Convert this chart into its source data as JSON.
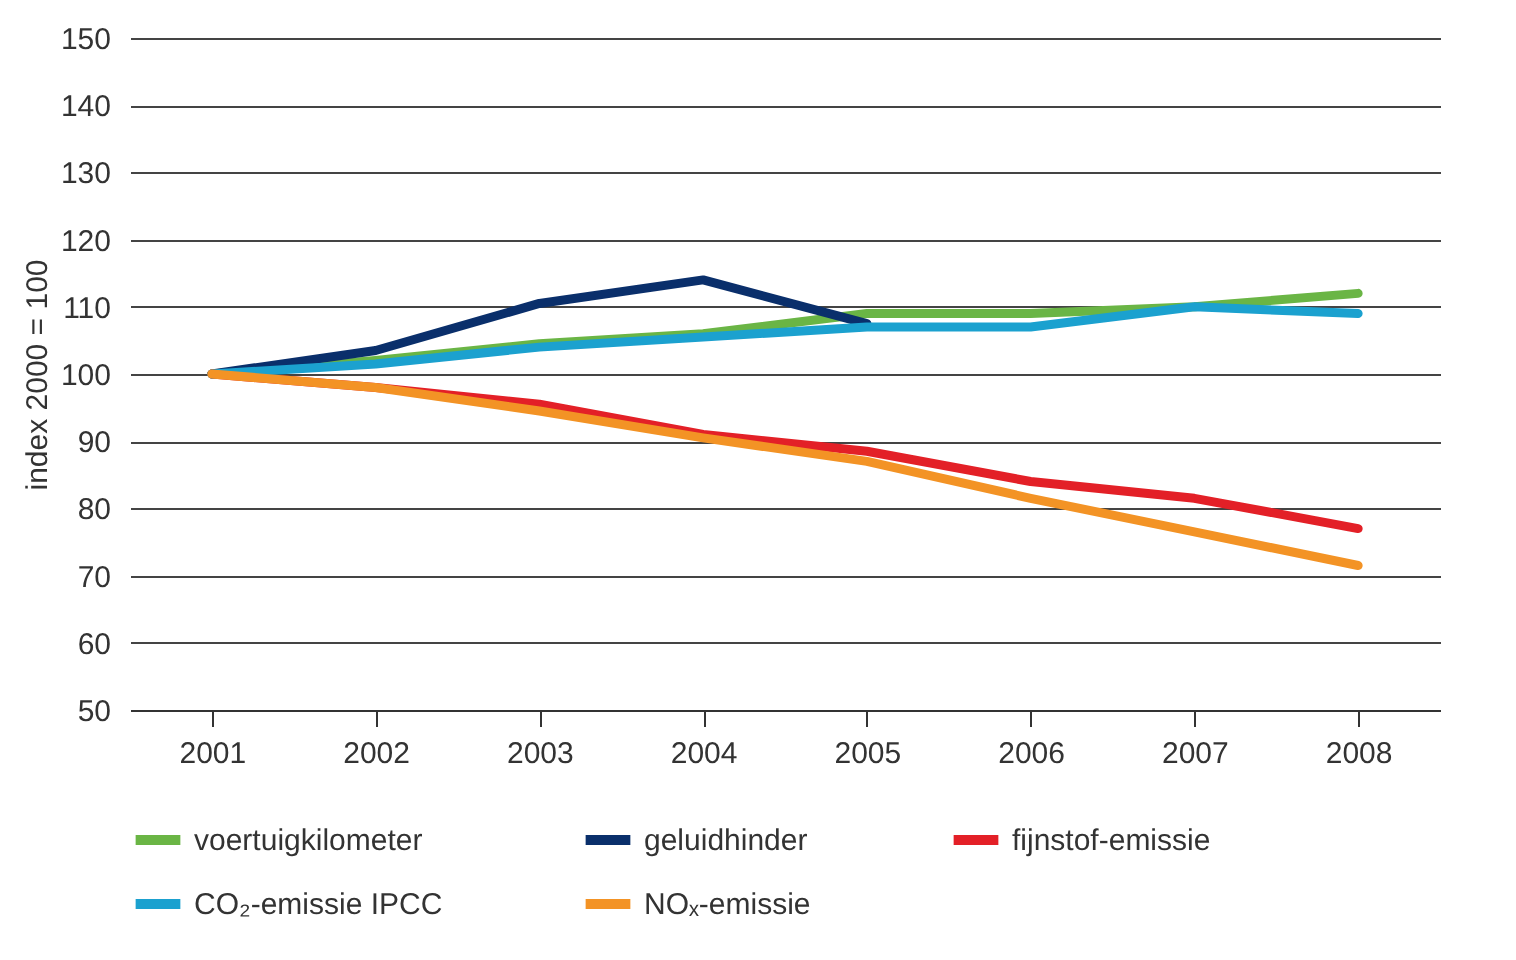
{
  "chart_data": {
    "type": "line",
    "ylabel": "index 2000 = 100",
    "categories": [
      "2001",
      "2002",
      "2003",
      "2004",
      "2005",
      "2006",
      "2007",
      "2008"
    ],
    "series": [
      {
        "name": "voertuigkilometer",
        "color": "#6ab545",
        "values": [
          100,
          102,
          104.5,
          106,
          109,
          109,
          110,
          112
        ]
      },
      {
        "name": "geluidhinder",
        "color": "#0a2f6b",
        "values": [
          100,
          103.5,
          110.5,
          114,
          107.5,
          null,
          null,
          null
        ]
      },
      {
        "name": "fijnstof-emissie",
        "color": "#e32027",
        "values": [
          100,
          98,
          95.5,
          91,
          88.5,
          84,
          81.5,
          77
        ]
      },
      {
        "name": "CO₂-emissie IPCC",
        "color": "#1ba1cf",
        "values": [
          100,
          101.5,
          104,
          105.5,
          107,
          107,
          110,
          109
        ]
      },
      {
        "name": "NOₓ-emissie",
        "color": "#f39325",
        "values": [
          100,
          98,
          94.5,
          90.5,
          87,
          81.5,
          76.5,
          71.5
        ]
      }
    ],
    "ylim": [
      50,
      150
    ],
    "yticks": [
      50,
      60,
      70,
      80,
      90,
      100,
      110,
      120,
      130,
      140,
      150
    ],
    "grid": "y",
    "legend": "bottom",
    "marker": "none",
    "line_style": "solid"
  }
}
